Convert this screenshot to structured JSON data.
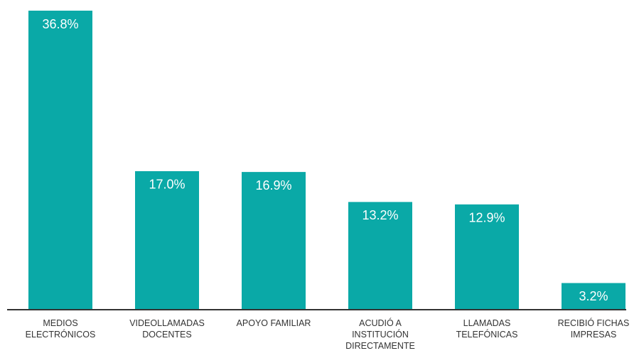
{
  "chart_data": {
    "type": "bar",
    "categories": [
      "MEDIOS ELECTRÓNICOS",
      "VIDEOLLAMADAS DOCENTES",
      "APOYO FAMILIAR",
      "ACUDIÓ A INSTITUCIÓN DIRECTAMENTE",
      "LLAMADAS TELEFÓNICAS",
      "RECIBIÓ FICHAS IMPRESAS"
    ],
    "values": [
      36.8,
      17.0,
      16.9,
      13.2,
      12.9,
      3.2
    ],
    "value_labels": [
      "36.8%",
      "17.0%",
      "16.9%",
      "13.2%",
      "12.9%",
      "3.2%"
    ],
    "color": "#0aa9a7"
  }
}
